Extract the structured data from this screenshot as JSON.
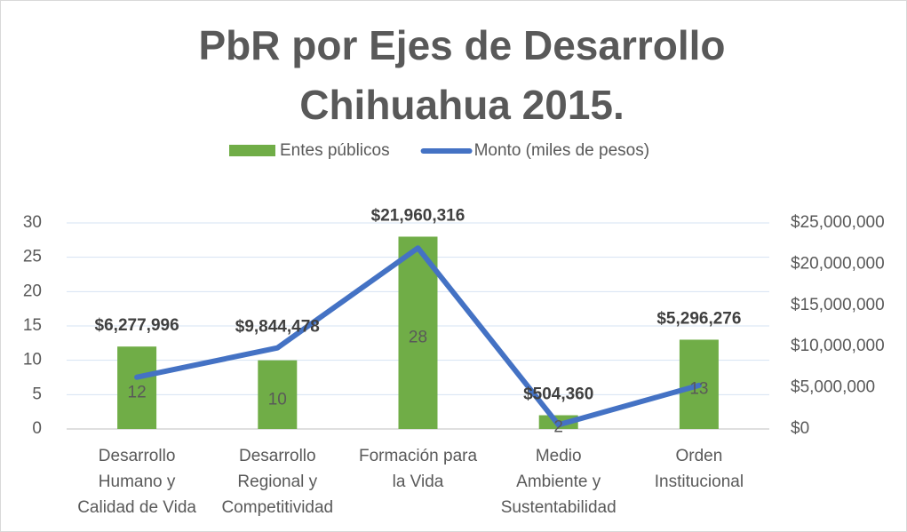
{
  "chart_data": {
    "type": "bar-line",
    "title": [
      "PbR por Ejes de Desarrollo",
      "Chihuahua 2015."
    ],
    "categories": [
      [
        "Desarrollo",
        "Humano y",
        "Calidad de Vida"
      ],
      [
        "Desarrollo",
        "Regional y",
        "Competitividad"
      ],
      [
        "Formación para",
        "la Vida"
      ],
      [
        "Medio",
        "Ambiente y",
        "Sustentabilidad"
      ],
      [
        "Orden",
        "Institucional"
      ]
    ],
    "series": [
      {
        "name": "Entes públicos",
        "type": "bar",
        "color": "#70ad47",
        "values": [
          12,
          10,
          28,
          2,
          13
        ]
      },
      {
        "name": "Monto (miles de pesos)",
        "type": "line",
        "axis": "y2",
        "color": "#4472c4",
        "values": [
          6277996,
          9844478,
          21960316,
          504360,
          5296276
        ],
        "value_labels": [
          "$6,277,996",
          "$9,844,478",
          "$21,960,316",
          "$504,360",
          "$5,296,276"
        ]
      }
    ],
    "ylim": [
      0,
      30
    ],
    "yticks": [
      0,
      5,
      10,
      15,
      20,
      25,
      30
    ],
    "y2lim": [
      0,
      25000000
    ],
    "y2ticks": [
      {
        "value": 0,
        "label": "$0"
      },
      {
        "value": 5000000,
        "label": "$5,000,000"
      },
      {
        "value": 10000000,
        "label": "$10,000,000"
      },
      {
        "value": 15000000,
        "label": "$15,000,000"
      },
      {
        "value": 20000000,
        "label": "$20,000,000"
      },
      {
        "value": 25000000,
        "label": "$25,000,000"
      }
    ],
    "grid": true,
    "legend": "top"
  }
}
